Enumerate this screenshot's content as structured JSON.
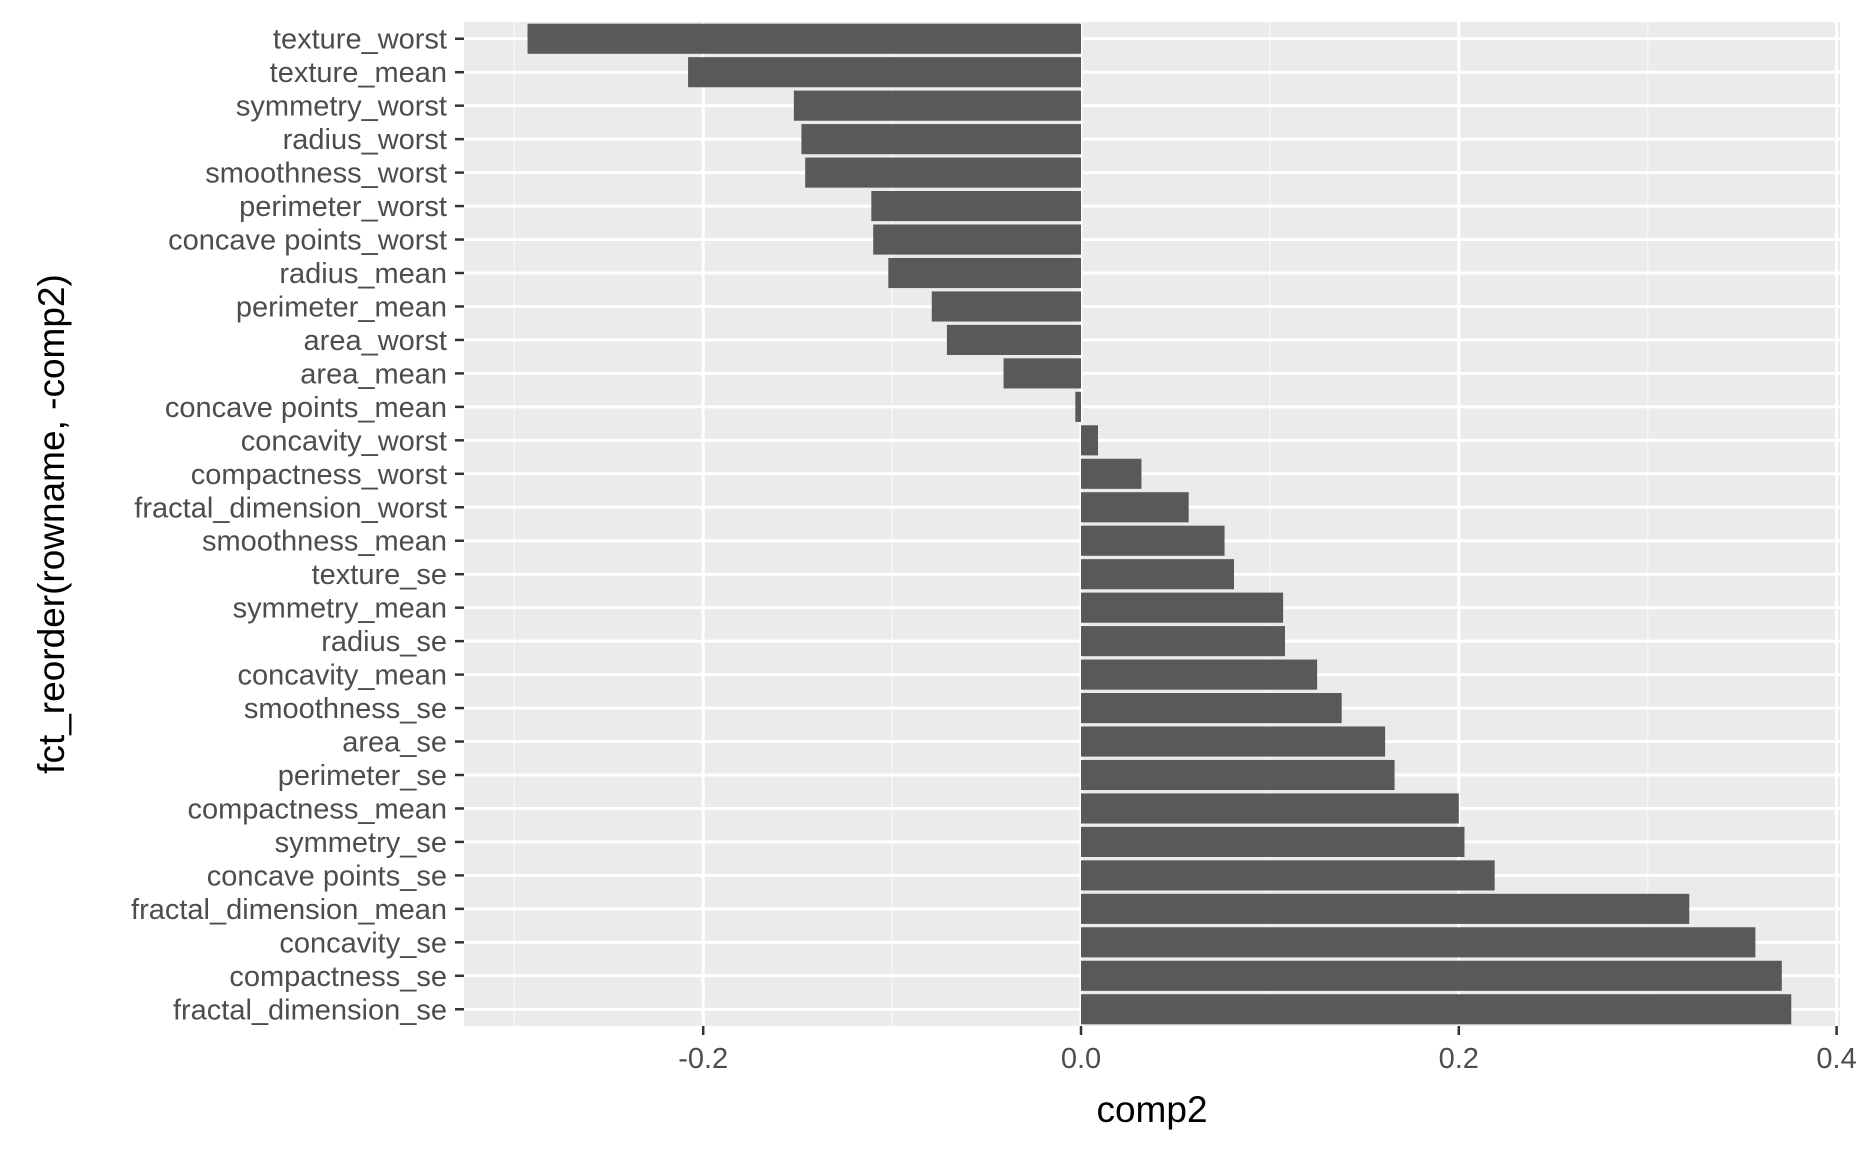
{
  "chart_data": {
    "type": "bar",
    "orientation": "horizontal",
    "title": "",
    "xlabel": "comp2",
    "ylabel": "fct_reorder(rowname, -comp2)",
    "xlim": [
      -0.3,
      0.4
    ],
    "xticks": [
      -0.2,
      0.0,
      0.2,
      0.4
    ],
    "xtick_labels": [
      "-0.2",
      "0.0",
      "0.2",
      "0.4"
    ],
    "grid": true,
    "categories": [
      "texture_worst",
      "texture_mean",
      "symmetry_worst",
      "radius_worst",
      "smoothness_worst",
      "perimeter_worst",
      "concave points_worst",
      "radius_mean",
      "perimeter_mean",
      "area_worst",
      "area_mean",
      "concave points_mean",
      "concavity_worst",
      "compactness_worst",
      "fractal_dimension_worst",
      "smoothness_mean",
      "texture_se",
      "symmetry_mean",
      "radius_se",
      "concavity_mean",
      "smoothness_se",
      "area_se",
      "perimeter_se",
      "compactness_mean",
      "symmetry_se",
      "concave points_se",
      "fractal_dimension_mean",
      "concavity_se",
      "compactness_se",
      "fractal_dimension_se"
    ],
    "values": [
      -0.293,
      -0.208,
      -0.152,
      -0.148,
      -0.146,
      -0.111,
      -0.11,
      -0.102,
      -0.079,
      -0.071,
      -0.041,
      -0.003,
      0.009,
      0.032,
      0.057,
      0.076,
      0.081,
      0.107,
      0.108,
      0.125,
      0.138,
      0.161,
      0.166,
      0.2,
      0.203,
      0.219,
      0.322,
      0.357,
      0.371,
      0.376
    ],
    "colors": {
      "bar": "#595959",
      "panel": "#ebebeb",
      "grid_major": "#ffffff",
      "grid_minor": "#f5f5f5"
    }
  }
}
